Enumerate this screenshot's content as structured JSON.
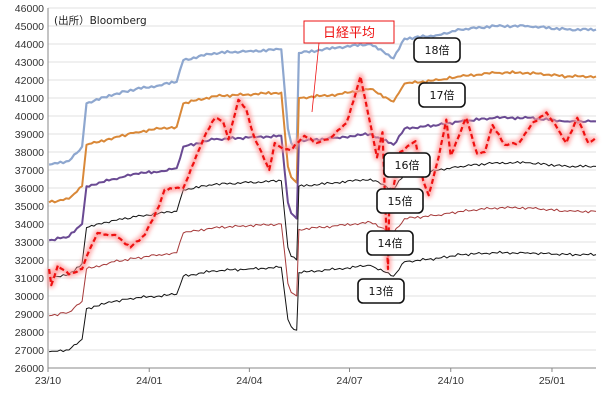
{
  "chart_data": {
    "type": "line",
    "title": "",
    "source": "(出所）Bloomberg",
    "xlabel": "",
    "ylabel": "",
    "ylim": [
      26000,
      46000
    ],
    "ystep": 1000,
    "xlim": [
      "2023-10-01",
      "2025-02-10"
    ],
    "x_ticks": [
      {
        "date": "2023-10-01",
        "label": "23/10"
      },
      {
        "date": "2024-01-01",
        "label": "24/01"
      },
      {
        "date": "2024-04-01",
        "label": "24/04"
      },
      {
        "date": "2024-07-01",
        "label": "24/07"
      },
      {
        "date": "2024-10-01",
        "label": "24/10"
      },
      {
        "date": "2025-01-01",
        "label": "25/01"
      }
    ],
    "grid": true,
    "series": [
      {
        "name": "18倍",
        "color": "#8ea7cf",
        "style": "solid",
        "width": 2.2,
        "points": [
          [
            "2023-10-02",
            37300
          ],
          [
            "2023-10-20",
            37500
          ],
          [
            "2023-11-01",
            38300
          ],
          [
            "2023-11-05",
            40700
          ],
          [
            "2023-11-30",
            41200
          ],
          [
            "2023-12-20",
            41500
          ],
          [
            "2024-01-10",
            41700
          ],
          [
            "2024-01-26",
            41900
          ],
          [
            "2024-02-01",
            43100
          ],
          [
            "2024-02-29",
            43500
          ],
          [
            "2024-03-31",
            43600
          ],
          [
            "2024-04-30",
            43700
          ],
          [
            "2024-05-06",
            39300
          ],
          [
            "2024-05-09",
            38500
          ],
          [
            "2024-05-14",
            38200
          ],
          [
            "2024-05-16",
            43500
          ],
          [
            "2024-06-20",
            43800
          ],
          [
            "2024-07-20",
            44000
          ],
          [
            "2024-08-10",
            43200
          ],
          [
            "2024-08-20",
            44300
          ],
          [
            "2024-09-20",
            44500
          ],
          [
            "2024-10-10",
            44800
          ],
          [
            "2024-11-10",
            45000
          ],
          [
            "2024-12-10",
            45000
          ],
          [
            "2025-01-15",
            44800
          ],
          [
            "2025-02-10",
            44800
          ]
        ]
      },
      {
        "name": "17倍",
        "color": "#d98838",
        "style": "solid",
        "width": 2.0,
        "points": [
          [
            "2023-10-02",
            35200
          ],
          [
            "2023-10-20",
            35400
          ],
          [
            "2023-11-01",
            36100
          ],
          [
            "2023-11-05",
            38400
          ],
          [
            "2023-11-30",
            38800
          ],
          [
            "2023-12-20",
            39100
          ],
          [
            "2024-01-10",
            39300
          ],
          [
            "2024-01-26",
            39400
          ],
          [
            "2024-02-01",
            40700
          ],
          [
            "2024-02-29",
            41100
          ],
          [
            "2024-03-31",
            41200
          ],
          [
            "2024-04-30",
            41300
          ],
          [
            "2024-05-06",
            37200
          ],
          [
            "2024-05-09",
            36600
          ],
          [
            "2024-05-14",
            36300
          ],
          [
            "2024-05-16",
            41000
          ],
          [
            "2024-06-20",
            41200
          ],
          [
            "2024-07-20",
            41500
          ],
          [
            "2024-08-10",
            40800
          ],
          [
            "2024-08-20",
            41800
          ],
          [
            "2024-09-20",
            42000
          ],
          [
            "2024-10-10",
            42200
          ],
          [
            "2024-11-10",
            42400
          ],
          [
            "2024-12-10",
            42400
          ],
          [
            "2025-01-15",
            42200
          ],
          [
            "2025-02-10",
            42200
          ]
        ]
      },
      {
        "name": "16倍",
        "color": "#6a4a93",
        "style": "solid",
        "width": 2.0,
        "points": [
          [
            "2023-10-02",
            33100
          ],
          [
            "2023-10-20",
            33300
          ],
          [
            "2023-11-01",
            34000
          ],
          [
            "2023-11-05",
            36100
          ],
          [
            "2023-11-30",
            36500
          ],
          [
            "2023-12-20",
            36800
          ],
          [
            "2024-01-10",
            36900
          ],
          [
            "2024-01-26",
            37100
          ],
          [
            "2024-02-01",
            38300
          ],
          [
            "2024-02-29",
            38700
          ],
          [
            "2024-03-31",
            38800
          ],
          [
            "2024-04-30",
            38900
          ],
          [
            "2024-05-06",
            35200
          ],
          [
            "2024-05-09",
            34600
          ],
          [
            "2024-05-14",
            34300
          ],
          [
            "2024-05-16",
            38600
          ],
          [
            "2024-06-20",
            38800
          ],
          [
            "2024-07-20",
            39000
          ],
          [
            "2024-08-10",
            38400
          ],
          [
            "2024-08-20",
            39300
          ],
          [
            "2024-09-20",
            39500
          ],
          [
            "2024-10-10",
            39700
          ],
          [
            "2024-11-10",
            39900
          ],
          [
            "2024-12-10",
            39900
          ],
          [
            "2025-01-15",
            39700
          ],
          [
            "2025-02-10",
            39700
          ]
        ]
      },
      {
        "name": "15倍",
        "color": "#111111",
        "style": "solid",
        "width": 1.0,
        "points": [
          [
            "2023-10-02",
            31000
          ],
          [
            "2023-10-20",
            31200
          ],
          [
            "2023-11-01",
            31800
          ],
          [
            "2023-11-05",
            33800
          ],
          [
            "2023-11-30",
            34200
          ],
          [
            "2023-12-20",
            34400
          ],
          [
            "2024-01-10",
            34600
          ],
          [
            "2024-01-26",
            34700
          ],
          [
            "2024-02-01",
            35900
          ],
          [
            "2024-02-29",
            36200
          ],
          [
            "2024-03-31",
            36300
          ],
          [
            "2024-04-30",
            36400
          ],
          [
            "2024-05-06",
            32700
          ],
          [
            "2024-05-09",
            32200
          ],
          [
            "2024-05-14",
            32000
          ],
          [
            "2024-05-16",
            36100
          ],
          [
            "2024-06-20",
            36300
          ],
          [
            "2024-07-20",
            36500
          ],
          [
            "2024-08-10",
            35900
          ],
          [
            "2024-08-20",
            36800
          ],
          [
            "2024-09-20",
            37000
          ],
          [
            "2024-10-10",
            37200
          ],
          [
            "2024-11-10",
            37400
          ],
          [
            "2024-12-10",
            37400
          ],
          [
            "2025-01-15",
            37200
          ],
          [
            "2025-02-10",
            37200
          ]
        ]
      },
      {
        "name": "14倍",
        "color": "#a63a3a",
        "style": "solid",
        "width": 1.0,
        "points": [
          [
            "2023-10-02",
            28900
          ],
          [
            "2023-10-20",
            29100
          ],
          [
            "2023-11-01",
            29700
          ],
          [
            "2023-11-05",
            31500
          ],
          [
            "2023-11-30",
            31900
          ],
          [
            "2023-12-20",
            32100
          ],
          [
            "2024-01-10",
            32300
          ],
          [
            "2024-01-26",
            32400
          ],
          [
            "2024-02-01",
            33500
          ],
          [
            "2024-02-29",
            33800
          ],
          [
            "2024-03-31",
            33900
          ],
          [
            "2024-04-30",
            34000
          ],
          [
            "2024-05-06",
            30700
          ],
          [
            "2024-05-09",
            30200
          ],
          [
            "2024-05-14",
            30000
          ],
          [
            "2024-05-16",
            33700
          ],
          [
            "2024-06-20",
            33900
          ],
          [
            "2024-07-20",
            34100
          ],
          [
            "2024-08-10",
            33500
          ],
          [
            "2024-08-20",
            34300
          ],
          [
            "2024-09-20",
            34500
          ],
          [
            "2024-10-10",
            34700
          ],
          [
            "2024-11-10",
            34900
          ],
          [
            "2024-12-10",
            34900
          ],
          [
            "2025-01-15",
            34700
          ],
          [
            "2025-02-10",
            34700
          ]
        ]
      },
      {
        "name": "13倍",
        "color": "#111111",
        "style": "solid",
        "width": 1.0,
        "points": [
          [
            "2023-10-02",
            26900
          ],
          [
            "2023-10-20",
            27000
          ],
          [
            "2023-11-01",
            27600
          ],
          [
            "2023-11-05",
            29300
          ],
          [
            "2023-11-30",
            29700
          ],
          [
            "2023-12-20",
            29900
          ],
          [
            "2024-01-10",
            30000
          ],
          [
            "2024-01-26",
            30100
          ],
          [
            "2024-02-01",
            31100
          ],
          [
            "2024-02-29",
            31400
          ],
          [
            "2024-03-31",
            31500
          ],
          [
            "2024-04-30",
            31600
          ],
          [
            "2024-05-06",
            28700
          ],
          [
            "2024-05-09",
            28300
          ],
          [
            "2024-05-14",
            28100
          ],
          [
            "2024-05-16",
            31300
          ],
          [
            "2024-06-20",
            31500
          ],
          [
            "2024-07-20",
            31700
          ],
          [
            "2024-08-10",
            31100
          ],
          [
            "2024-08-20",
            31900
          ],
          [
            "2024-09-20",
            32100
          ],
          [
            "2024-10-10",
            32300
          ],
          [
            "2024-11-10",
            32400
          ],
          [
            "2024-12-10",
            32400
          ],
          [
            "2025-01-15",
            32300
          ],
          [
            "2025-02-10",
            32300
          ]
        ]
      },
      {
        "name": "日経平均",
        "color": "#ee1111",
        "style": "dashed",
        "width": 2.2,
        "glow": true,
        "points": [
          [
            "2023-10-02",
            31500
          ],
          [
            "2023-10-04",
            30600
          ],
          [
            "2023-10-10",
            31700
          ],
          [
            "2023-10-20",
            31200
          ],
          [
            "2023-11-01",
            31500
          ],
          [
            "2023-11-08",
            32600
          ],
          [
            "2023-11-15",
            33500
          ],
          [
            "2023-11-20",
            33400
          ],
          [
            "2023-12-01",
            33400
          ],
          [
            "2023-12-15",
            32700
          ],
          [
            "2023-12-28",
            33400
          ],
          [
            "2024-01-10",
            35000
          ],
          [
            "2024-01-15",
            35900
          ],
          [
            "2024-01-25",
            36000
          ],
          [
            "2024-02-01",
            36000
          ],
          [
            "2024-02-15",
            38100
          ],
          [
            "2024-02-22",
            39100
          ],
          [
            "2024-03-01",
            39900
          ],
          [
            "2024-03-08",
            39700
          ],
          [
            "2024-03-13",
            38700
          ],
          [
            "2024-03-22",
            40900
          ],
          [
            "2024-03-29",
            40400
          ],
          [
            "2024-04-05",
            38900
          ],
          [
            "2024-04-19",
            37000
          ],
          [
            "2024-04-24",
            38500
          ],
          [
            "2024-05-01",
            38200
          ],
          [
            "2024-05-08",
            38100
          ],
          [
            "2024-05-21",
            38900
          ],
          [
            "2024-06-01",
            38500
          ],
          [
            "2024-06-14",
            38800
          ],
          [
            "2024-06-28",
            39600
          ],
          [
            "2024-07-05",
            40900
          ],
          [
            "2024-07-11",
            42200
          ],
          [
            "2024-07-18",
            40100
          ],
          [
            "2024-07-26",
            37700
          ],
          [
            "2024-07-31",
            39100
          ],
          [
            "2024-08-02",
            35900
          ],
          [
            "2024-08-05",
            31500
          ],
          [
            "2024-08-06",
            34700
          ],
          [
            "2024-08-16",
            38000
          ],
          [
            "2024-08-30",
            38600
          ],
          [
            "2024-09-06",
            36400
          ],
          [
            "2024-09-11",
            35600
          ],
          [
            "2024-09-20",
            37700
          ],
          [
            "2024-09-27",
            39800
          ],
          [
            "2024-10-01",
            37800
          ],
          [
            "2024-10-15",
            39900
          ],
          [
            "2024-10-25",
            37900
          ],
          [
            "2024-11-01",
            38000
          ],
          [
            "2024-11-08",
            39500
          ],
          [
            "2024-11-19",
            38400
          ],
          [
            "2024-12-02",
            38500
          ],
          [
            "2024-12-13",
            39500
          ],
          [
            "2024-12-27",
            40200
          ],
          [
            "2025-01-06",
            39300
          ],
          [
            "2025-01-14",
            38500
          ],
          [
            "2025-01-24",
            39900
          ],
          [
            "2025-02-03",
            38500
          ],
          [
            "2025-02-10",
            38800
          ]
        ]
      }
    ],
    "series_labels": [
      "18倍",
      "17倍",
      "16倍",
      "15倍",
      "14倍",
      "13倍"
    ],
    "annotation": "日経平均"
  }
}
